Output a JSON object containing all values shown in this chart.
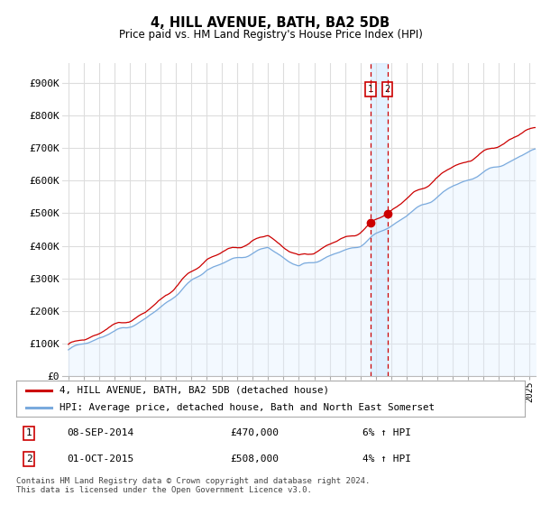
{
  "title": "4, HILL AVENUE, BATH, BA2 5DB",
  "subtitle": "Price paid vs. HM Land Registry's House Price Index (HPI)",
  "ylabel_ticks": [
    "£0",
    "£100K",
    "£200K",
    "£300K",
    "£400K",
    "£500K",
    "£600K",
    "£700K",
    "£800K",
    "£900K"
  ],
  "ytick_values": [
    0,
    100000,
    200000,
    300000,
    400000,
    500000,
    600000,
    700000,
    800000,
    900000
  ],
  "ylim": [
    0,
    960000
  ],
  "x_start_year": 1995,
  "x_end_year": 2025,
  "transaction1_date": 2014.67,
  "transaction1_price": 470000,
  "transaction1_label": "08-SEP-2014",
  "transaction1_amount": "£470,000",
  "transaction1_hpi": "6% ↑ HPI",
  "transaction2_date": 2015.75,
  "transaction2_price": 508000,
  "transaction2_label": "01-OCT-2015",
  "transaction2_amount": "£508,000",
  "transaction2_hpi": "4% ↑ HPI",
  "legend_line1": "4, HILL AVENUE, BATH, BA2 5DB (detached house)",
  "legend_line2": "HPI: Average price, detached house, Bath and North East Somerset",
  "footer": "Contains HM Land Registry data © Crown copyright and database right 2024.\nThis data is licensed under the Open Government Licence v3.0.",
  "line1_color": "#cc0000",
  "line2_color": "#7aaadd",
  "line2_fill_color": "#ddeeff",
  "background_color": "#ffffff",
  "grid_color": "#dddddd"
}
